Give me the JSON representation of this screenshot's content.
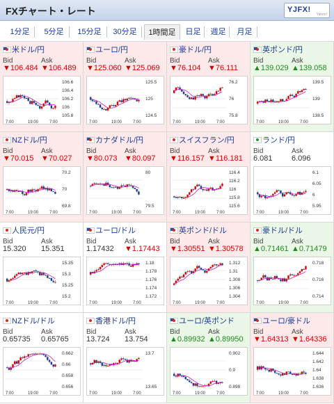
{
  "header": {
    "title": "FXチャート・レート",
    "logo_text": "YJFX!",
    "logo_sub": "Yahoo!"
  },
  "tabs": [
    {
      "label": "1分足"
    },
    {
      "label": "5分足"
    },
    {
      "label": "15分足"
    },
    {
      "label": "30分足"
    },
    {
      "label": "1時間足"
    },
    {
      "label": "日足"
    },
    {
      "label": "週足"
    },
    {
      "label": "月足"
    }
  ],
  "active_tab": "1時間足",
  "colors": {
    "down_bg": "#fde9ea",
    "up_bg": "#eaf6e6",
    "down_text": "#d20000",
    "up_text": "#1d8b1d",
    "bull_candle": "#d20000",
    "bear_candle": "#1a3d8f",
    "ma_line": "#c020c0"
  },
  "bid_label": "Bid",
  "ask_label": "Ask",
  "pairs": [
    {
      "name": "米ドル/円",
      "trend": "down",
      "bid": "▼106.484",
      "ask": "▼106.489",
      "price_ticks": [
        "106.6",
        "106.4",
        "106.2",
        "106",
        "105.8"
      ],
      "time_ticks": [
        "7:00",
        "19:00",
        "7:00"
      ]
    },
    {
      "name": "ユーロ/円",
      "trend": "down",
      "bid": "▼125.060",
      "ask": "▼125.069",
      "price_ticks": [
        "125.5",
        "125",
        "124.5"
      ],
      "time_ticks": [
        "7:00",
        "19:00",
        "7:00"
      ]
    },
    {
      "name": "豪ドル/円",
      "trend": "down",
      "bid": "▼76.104",
      "ask": "▼76.111",
      "price_ticks": [
        "76.2",
        "76",
        "75.8"
      ],
      "time_ticks": [
        "7:00",
        "19:00",
        "7:00"
      ]
    },
    {
      "name": "英ポンド/円",
      "trend": "up",
      "bid": "▲139.029",
      "ask": "▲139.058",
      "price_ticks": [
        "139.5",
        "139",
        "138.5"
      ],
      "time_ticks": [
        "7:00",
        "19:00",
        "7:00"
      ]
    },
    {
      "name": "NZドル/円",
      "trend": "down",
      "bid": "▼70.015",
      "ask": "▼70.027",
      "price_ticks": [
        "70.2",
        "70",
        "69.8"
      ],
      "time_ticks": [
        "7:00",
        "19:00",
        "7:00"
      ]
    },
    {
      "name": "カナダドル/円",
      "trend": "down",
      "bid": "▼80.073",
      "ask": "▼80.097",
      "price_ticks": [
        "80",
        "79.5"
      ],
      "time_ticks": [
        "7:00",
        "19:00",
        "7:00"
      ]
    },
    {
      "name": "スイスフラン/円",
      "trend": "down",
      "bid": "▼116.157",
      "ask": "▼116.181",
      "price_ticks": [
        "116.4",
        "116.2",
        "116",
        "115.8",
        "115.6"
      ],
      "time_ticks": [
        "7:00",
        "19:00",
        "7:00"
      ]
    },
    {
      "name": "ランド/円",
      "trend": "flat",
      "bid": "6.081",
      "ask": "6.096",
      "price_ticks": [
        "6.1",
        "6.05",
        "6",
        "5.95"
      ],
      "time_ticks": [
        "7:00",
        "19:00",
        "7:00"
      ]
    },
    {
      "name": "人民元/円",
      "trend": "flat",
      "bid": "15.320",
      "ask": "15.351",
      "price_ticks": [
        "15.35",
        "15.3",
        "15.25",
        "15.2"
      ],
      "time_ticks": [
        "7:00",
        "19:00",
        "7:00"
      ]
    },
    {
      "name": "ユーロ/ドル",
      "trend": "flat",
      "bid": "1.17432",
      "ask": "▼1.17443",
      "price_ticks": [
        "1.18",
        "1.178",
        "1.176",
        "1.174",
        "1.172"
      ],
      "time_ticks": [
        "7:00",
        "19:00",
        "7:00"
      ]
    },
    {
      "name": "英ポンド/ドル",
      "trend": "down",
      "bid": "▼1.30551",
      "ask": "▼1.30578",
      "price_ticks": [
        "1.312",
        "1.31",
        "1.308",
        "1.306",
        "1.304"
      ],
      "time_ticks": [
        "7:00",
        "19:00",
        "7:00"
      ]
    },
    {
      "name": "豪ドル/ドル",
      "trend": "up",
      "bid": "▲0.71461",
      "ask": "▲0.71479",
      "price_ticks": [
        "0.718",
        "0.716",
        "0.714"
      ],
      "time_ticks": [
        "7:00",
        "19:00",
        "7:00"
      ]
    },
    {
      "name": "NZドル/ドル",
      "trend": "flat",
      "bid": "0.65735",
      "ask": "0.65765",
      "price_ticks": [
        "0.662",
        "0.66",
        "0.658",
        "0.656"
      ],
      "time_ticks": [
        "7:00",
        "19:00",
        "7:00"
      ]
    },
    {
      "name": "香港ドル/円",
      "trend": "flat",
      "bid": "13.724",
      "ask": "13.754",
      "price_ticks": [
        "13.7",
        "13.65"
      ],
      "time_ticks": [
        "7:00",
        "19:00",
        "7:00"
      ]
    },
    {
      "name": "ユーロ/英ポンド",
      "trend": "up",
      "bid": "▲0.89932",
      "ask": "▲0.89950",
      "price_ticks": [
        "0.902",
        "0.9",
        "0.898"
      ],
      "time_ticks": [
        "7:00",
        "19:00",
        "7:00"
      ]
    },
    {
      "name": "ユーロ/豪ドル",
      "trend": "down",
      "bid": "▼1.64313",
      "ask": "▼1.64336",
      "price_ticks": [
        "1.644",
        "1.642",
        "1.64",
        "1.638",
        "1.636"
      ],
      "time_ticks": [
        "7:00",
        "19:00",
        "7:00"
      ]
    }
  ]
}
